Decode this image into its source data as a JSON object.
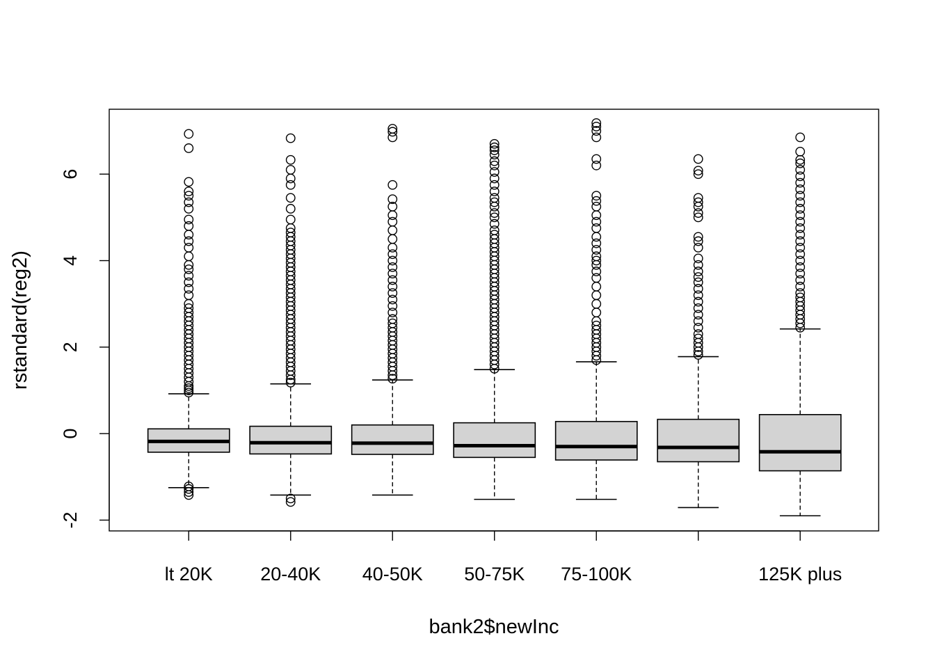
{
  "chart_data": {
    "type": "boxplot",
    "title": "",
    "xlabel": "bank2$newInc",
    "ylabel": "rstandard(reg2)",
    "ylim": [
      -2.25,
      7.5
    ],
    "y_ticks": [
      -2,
      0,
      2,
      4,
      6
    ],
    "y_tick_labels": [
      "-2",
      "0",
      "2",
      "4",
      "6"
    ],
    "box_fill": "#d3d3d3",
    "categories": [
      "lt 20K",
      "20-40K",
      "40-50K",
      "50-75K",
      "75-100K",
      "",
      "125K plus"
    ],
    "boxes": [
      {
        "whisker_low": -1.25,
        "q1": -0.43,
        "median": -0.18,
        "q3": 0.11,
        "whisker_high": 0.92,
        "outliers_high": [
          0.95,
          1.0,
          1.05,
          1.1,
          1.2,
          1.3,
          1.4,
          1.5,
          1.6,
          1.7,
          1.8,
          1.9,
          2.0,
          2.1,
          2.2,
          2.3,
          2.4,
          2.5,
          2.6,
          2.7,
          2.8,
          2.9,
          3.0,
          3.2,
          3.35,
          3.5,
          3.65,
          3.8,
          3.9,
          4.1,
          4.3,
          4.45,
          4.6,
          4.8,
          4.95,
          5.2,
          5.35,
          5.5,
          5.6,
          5.82,
          6.6,
          6.93
        ],
        "outliers_low": [
          -1.22,
          -1.28,
          -1.35,
          -1.42
        ]
      },
      {
        "whisker_low": -1.42,
        "q1": -0.47,
        "median": -0.21,
        "q3": 0.17,
        "whisker_high": 1.15,
        "outliers_high": [
          1.18,
          1.25,
          1.35,
          1.45,
          1.55,
          1.65,
          1.75,
          1.85,
          1.95,
          2.05,
          2.15,
          2.25,
          2.35,
          2.45,
          2.55,
          2.65,
          2.75,
          2.85,
          2.95,
          3.05,
          3.15,
          3.25,
          3.35,
          3.45,
          3.55,
          3.65,
          3.75,
          3.85,
          3.95,
          4.05,
          4.15,
          4.25,
          4.35,
          4.45,
          4.55,
          4.65,
          4.75,
          4.95,
          5.2,
          5.45,
          5.75,
          5.9,
          6.1,
          6.33,
          6.83
        ],
        "outliers_low": [
          -1.5,
          -1.58
        ]
      },
      {
        "whisker_low": -1.42,
        "q1": -0.48,
        "median": -0.22,
        "q3": 0.2,
        "whisker_high": 1.24,
        "outliers_high": [
          1.27,
          1.35,
          1.45,
          1.55,
          1.65,
          1.75,
          1.85,
          1.95,
          2.05,
          2.15,
          2.25,
          2.35,
          2.45,
          2.55,
          2.65,
          2.8,
          2.95,
          3.1,
          3.25,
          3.4,
          3.55,
          3.7,
          3.85,
          4.0,
          4.15,
          4.3,
          4.5,
          4.7,
          4.9,
          5.05,
          5.25,
          5.42,
          5.75,
          6.85,
          6.98,
          7.05
        ],
        "outliers_low": []
      },
      {
        "whisker_low": -1.52,
        "q1": -0.55,
        "median": -0.28,
        "q3": 0.25,
        "whisker_high": 1.48,
        "outliers_high": [
          1.5,
          1.6,
          1.7,
          1.8,
          1.9,
          2.0,
          2.1,
          2.2,
          2.3,
          2.4,
          2.5,
          2.6,
          2.7,
          2.8,
          2.9,
          3.0,
          3.1,
          3.2,
          3.3,
          3.4,
          3.5,
          3.6,
          3.7,
          3.8,
          3.9,
          4.0,
          4.1,
          4.2,
          4.3,
          4.4,
          4.5,
          4.6,
          4.7,
          4.85,
          5.0,
          5.1,
          5.25,
          5.35,
          5.45,
          5.6,
          5.75,
          5.9,
          6.05,
          6.2,
          6.3,
          6.45,
          6.55,
          6.62,
          6.7
        ],
        "outliers_low": []
      },
      {
        "whisker_low": -1.52,
        "q1": -0.61,
        "median": -0.3,
        "q3": 0.28,
        "whisker_high": 1.66,
        "outliers_high": [
          1.7,
          1.8,
          1.9,
          2.0,
          2.1,
          2.2,
          2.3,
          2.4,
          2.5,
          2.6,
          2.8,
          3.0,
          3.2,
          3.4,
          3.6,
          3.75,
          3.9,
          4.0,
          4.1,
          4.25,
          4.4,
          4.55,
          4.75,
          4.9,
          5.05,
          5.25,
          5.38,
          5.5,
          6.2,
          6.35,
          6.85,
          7.0,
          7.1,
          7.18
        ],
        "outliers_low": []
      },
      {
        "whisker_low": -1.71,
        "q1": -0.65,
        "median": -0.32,
        "q3": 0.33,
        "whisker_high": 1.78,
        "outliers_high": [
          1.82,
          1.9,
          2.0,
          2.1,
          2.2,
          2.3,
          2.45,
          2.6,
          2.75,
          2.9,
          3.05,
          3.2,
          3.35,
          3.5,
          3.62,
          3.75,
          3.9,
          4.05,
          4.3,
          4.45,
          4.55,
          5.0,
          5.1,
          5.25,
          5.35,
          5.45,
          6.0,
          6.08,
          6.35
        ],
        "outliers_low": []
      },
      {
        "whisker_low": -1.9,
        "q1": -0.86,
        "median": -0.42,
        "q3": 0.44,
        "whisker_high": 2.42,
        "outliers_high": [
          2.45,
          2.55,
          2.65,
          2.75,
          2.85,
          2.95,
          3.05,
          3.15,
          3.25,
          3.4,
          3.55,
          3.7,
          3.85,
          4.0,
          4.15,
          4.3,
          4.45,
          4.6,
          4.75,
          4.9,
          5.05,
          5.2,
          5.35,
          5.5,
          5.65,
          5.8,
          5.95,
          6.1,
          6.25,
          6.33,
          6.52,
          6.85
        ],
        "outliers_low": []
      }
    ]
  }
}
